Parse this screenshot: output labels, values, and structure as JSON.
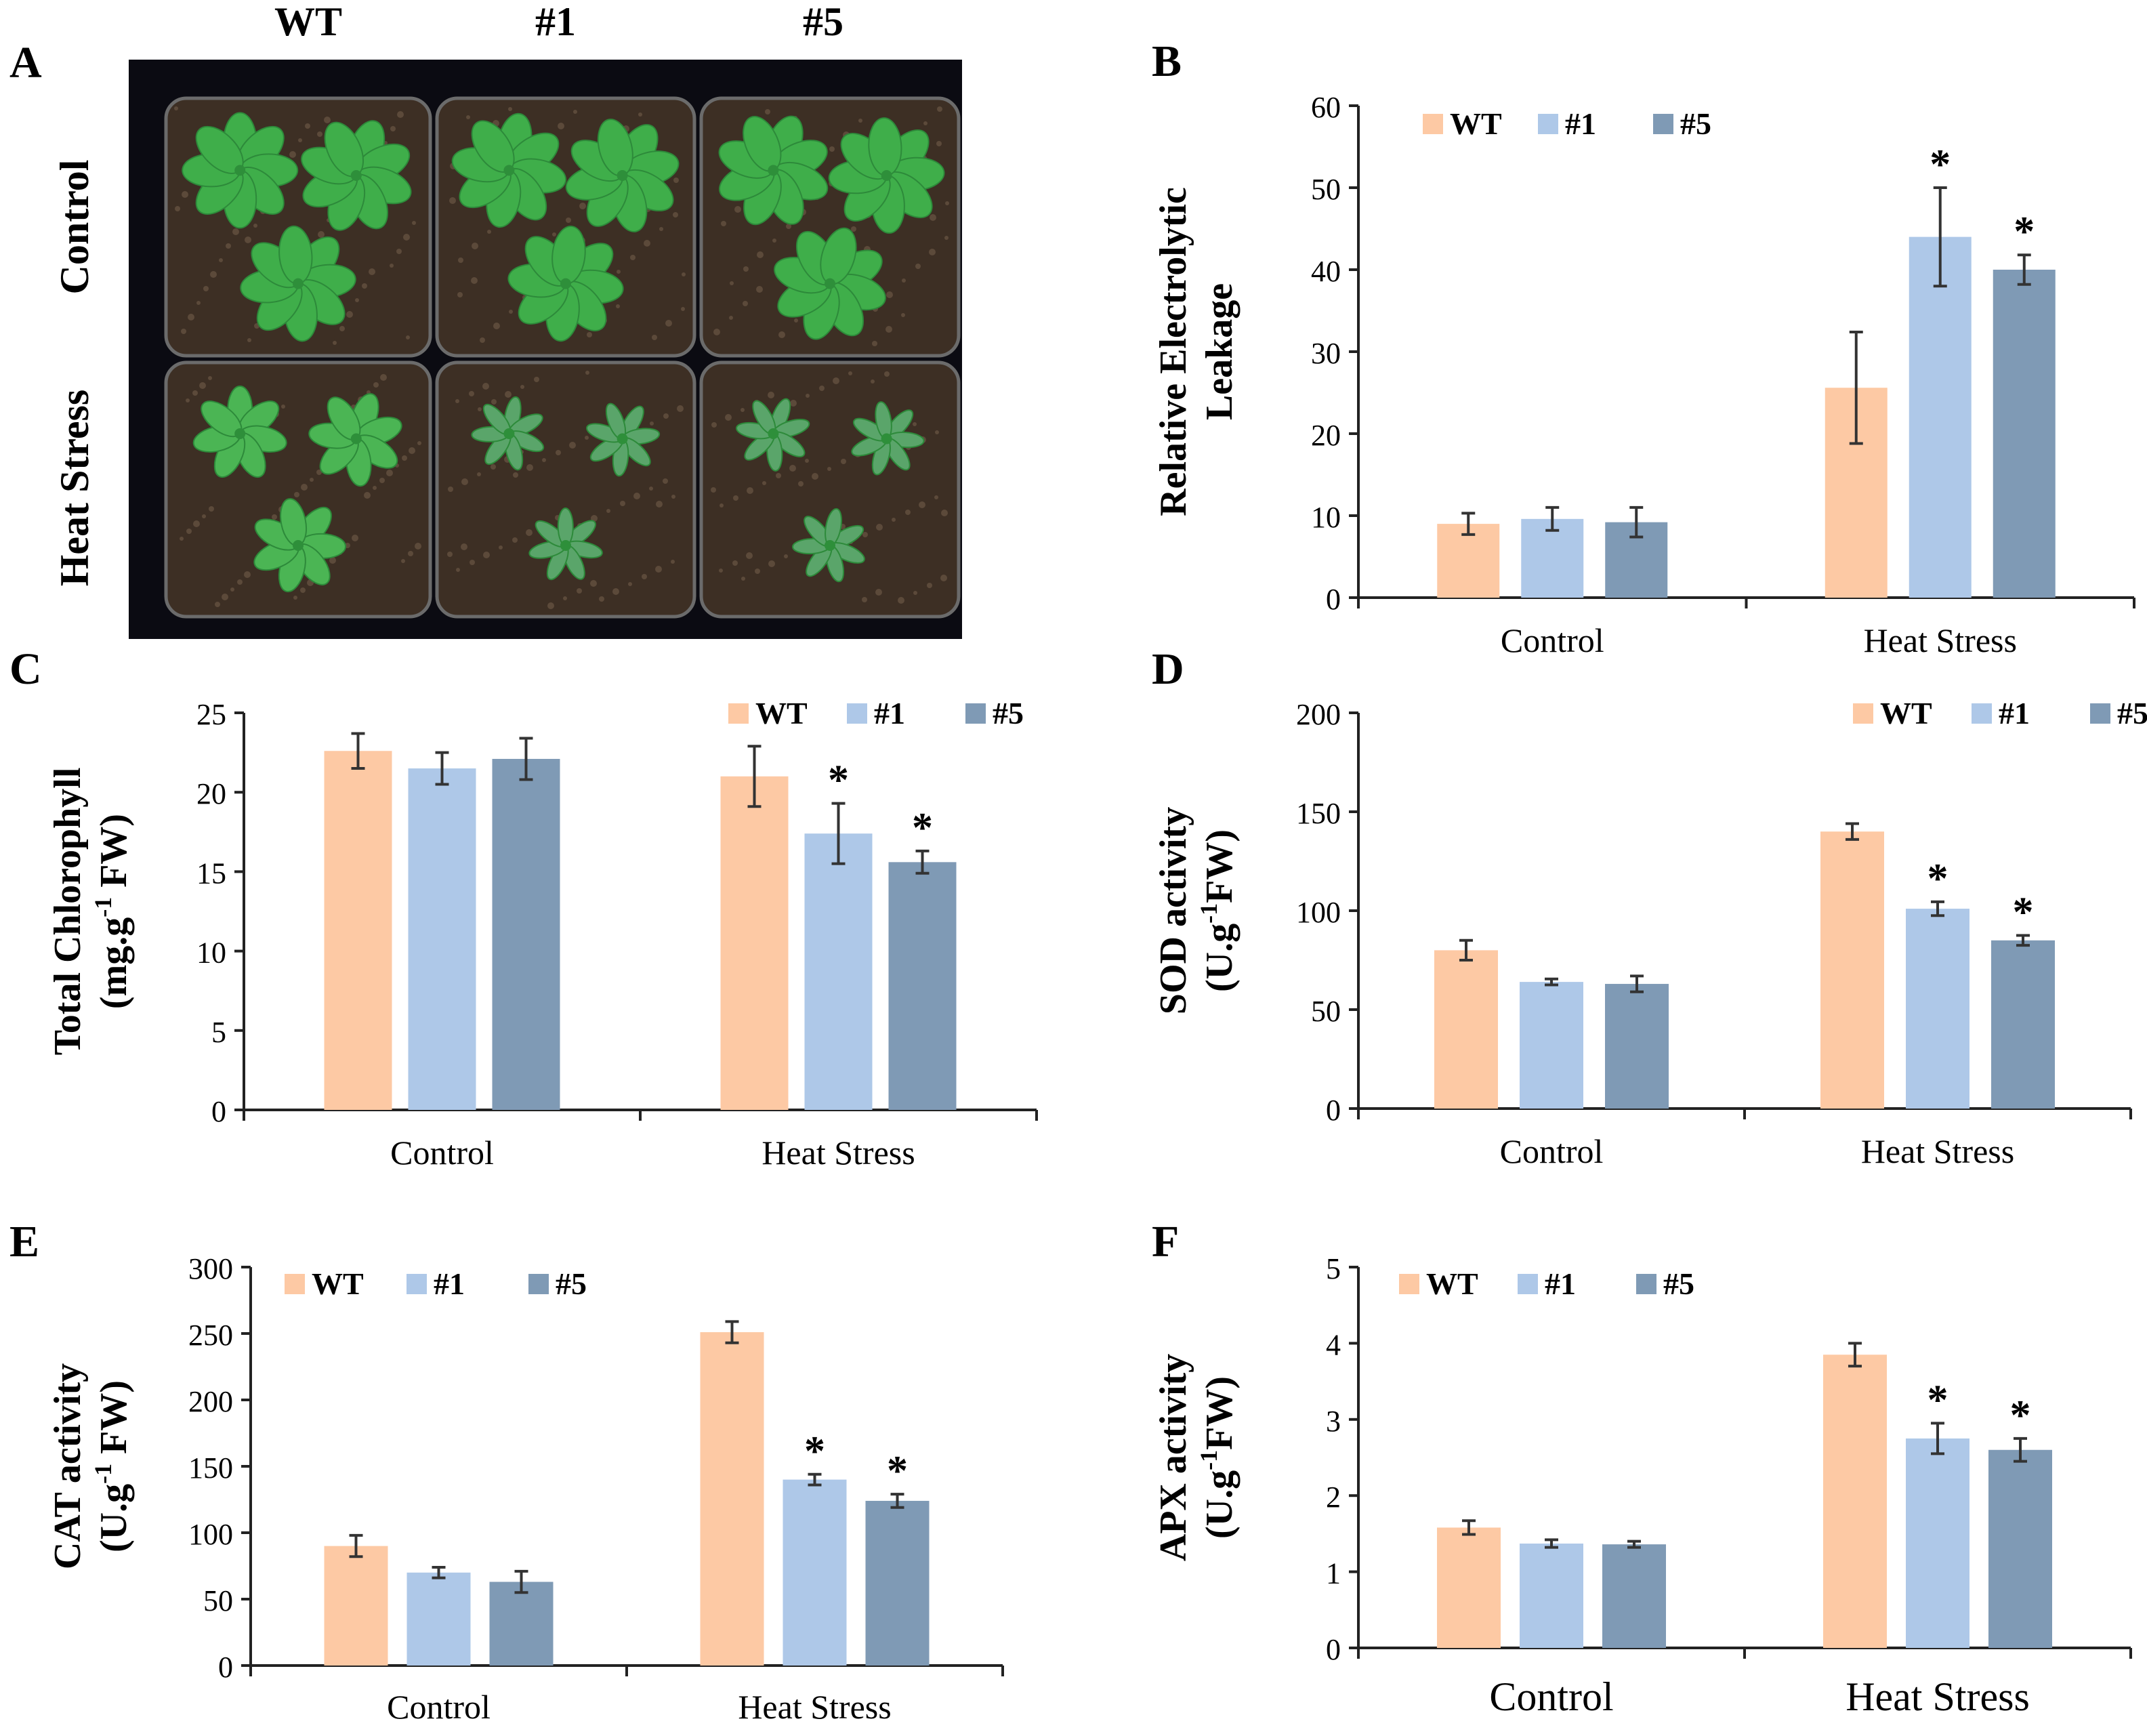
{
  "colors": {
    "wt": "#FDC9A4",
    "l1": "#AEC8E8",
    "l5": "#7F9AB5",
    "axis": "#222222",
    "err": "#333333",
    "photo_bg": "#0b0b12",
    "soil": "#3d2f24",
    "plant": "#3fae4a"
  },
  "panel_a": {
    "letter": "A",
    "col_labels": [
      "WT",
      "#1",
      "#5"
    ],
    "row_labels": [
      "Control",
      "Heat Stress"
    ],
    "image": "seedling-photo"
  },
  "chart_data": [
    {
      "id": "B",
      "letter": "B",
      "type": "bar",
      "title": "",
      "xlabel": "",
      "ylabel_lines": [
        "Relative Electrolytic",
        "Leakage"
      ],
      "ylim": [
        0,
        60
      ],
      "ystep": 10,
      "categories": [
        "Control",
        "Heat Stress"
      ],
      "legend": {
        "placement": "top-left",
        "labels": [
          "WT",
          "#1",
          "#5"
        ]
      },
      "series": [
        {
          "name": "WT",
          "values": [
            9.0,
            25.6
          ],
          "errors": [
            1.3,
            6.8
          ],
          "sig": [
            "",
            ""
          ]
        },
        {
          "name": "#1",
          "values": [
            9.6,
            44.0
          ],
          "errors": [
            1.4,
            6.0
          ],
          "sig": [
            "",
            "*"
          ]
        },
        {
          "name": "#5",
          "values": [
            9.2,
            40.0
          ],
          "errors": [
            1.8,
            1.8
          ],
          "sig": [
            "",
            "*"
          ]
        }
      ]
    },
    {
      "id": "C",
      "letter": "C",
      "type": "bar",
      "title": "",
      "xlabel": "",
      "ylabel_lines": [
        "Total Chlorophyll",
        "(mg.g-1 FW)"
      ],
      "ylim": [
        0,
        25
      ],
      "ystep": 5,
      "categories": [
        "Control",
        "Heat Stress"
      ],
      "legend": {
        "placement": "top-right",
        "labels": [
          "WT",
          "#1",
          "#5"
        ]
      },
      "series": [
        {
          "name": "WT",
          "values": [
            22.6,
            21.0
          ],
          "errors": [
            1.1,
            1.9
          ],
          "sig": [
            "",
            ""
          ]
        },
        {
          "name": "#1",
          "values": [
            21.5,
            17.4
          ],
          "errors": [
            1.0,
            1.9
          ],
          "sig": [
            "",
            "*"
          ]
        },
        {
          "name": "#5",
          "values": [
            22.1,
            15.6
          ],
          "errors": [
            1.3,
            0.7
          ],
          "sig": [
            "",
            "*"
          ]
        }
      ]
    },
    {
      "id": "D",
      "letter": "D",
      "type": "bar",
      "title": "",
      "xlabel": "",
      "ylabel_lines": [
        "SOD activity",
        "(U.g-1FW)"
      ],
      "ylim": [
        0,
        200
      ],
      "ystep": 50,
      "categories": [
        "Control",
        "Heat Stress"
      ],
      "legend": {
        "placement": "top-right",
        "labels": [
          "WT",
          "#1",
          "#5"
        ]
      },
      "series": [
        {
          "name": "WT",
          "values": [
            80,
            140
          ],
          "errors": [
            5,
            4
          ],
          "sig": [
            "",
            ""
          ]
        },
        {
          "name": "#1",
          "values": [
            64,
            101
          ],
          "errors": [
            1.5,
            3.5
          ],
          "sig": [
            "",
            "*"
          ]
        },
        {
          "name": "#5",
          "values": [
            63,
            85
          ],
          "errors": [
            4,
            2.5
          ],
          "sig": [
            "",
            "*"
          ]
        }
      ]
    },
    {
      "id": "E",
      "letter": "E",
      "type": "bar",
      "title": "",
      "xlabel": "",
      "ylabel_lines": [
        "CAT activity",
        "(U.g-1 FW)"
      ],
      "ylim": [
        0,
        300
      ],
      "ystep": 50,
      "categories": [
        "Control",
        "Heat Stress"
      ],
      "legend": {
        "placement": "top-left",
        "labels": [
          "WT",
          "#1",
          "#5"
        ]
      },
      "series": [
        {
          "name": "WT",
          "values": [
            90,
            251
          ],
          "errors": [
            8,
            8
          ],
          "sig": [
            "",
            ""
          ]
        },
        {
          "name": "#1",
          "values": [
            70,
            140
          ],
          "errors": [
            4,
            4
          ],
          "sig": [
            "",
            "*"
          ]
        },
        {
          "name": "#5",
          "values": [
            63,
            124
          ],
          "errors": [
            8,
            5
          ],
          "sig": [
            "",
            "*"
          ]
        }
      ]
    },
    {
      "id": "F",
      "letter": "F",
      "type": "bar",
      "title": "",
      "xlabel": "",
      "ylabel_lines": [
        "APX activity",
        "(U.g-1FW)"
      ],
      "ylim": [
        0,
        5
      ],
      "ystep": 1,
      "categories": [
        "Control",
        "Heat Stress"
      ],
      "legend": {
        "placement": "top-left",
        "labels": [
          "WT",
          "#1",
          "#5"
        ]
      },
      "series": [
        {
          "name": "WT",
          "values": [
            1.58,
            3.85
          ],
          "errors": [
            0.09,
            0.15
          ],
          "sig": [
            "",
            ""
          ]
        },
        {
          "name": "#1",
          "values": [
            1.37,
            2.75
          ],
          "errors": [
            0.05,
            0.2
          ],
          "sig": [
            "",
            "*"
          ]
        },
        {
          "name": "#5",
          "values": [
            1.36,
            2.6
          ],
          "errors": [
            0.04,
            0.15
          ],
          "sig": [
            "",
            "*"
          ]
        }
      ]
    }
  ]
}
